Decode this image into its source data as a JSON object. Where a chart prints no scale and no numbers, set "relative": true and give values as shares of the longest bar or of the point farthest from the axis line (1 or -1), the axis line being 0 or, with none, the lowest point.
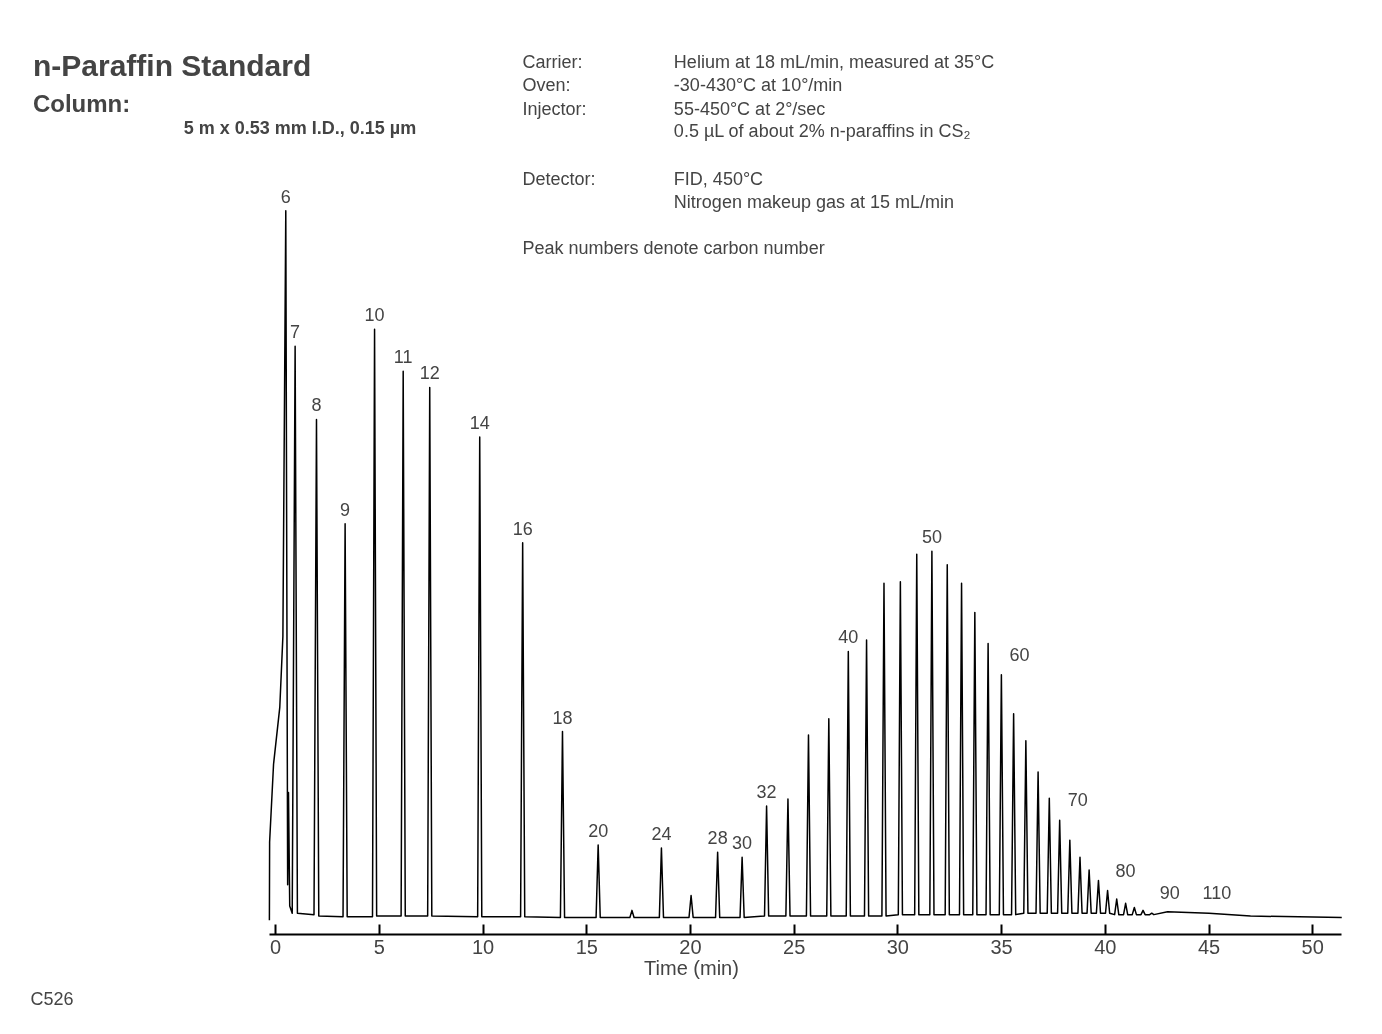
{
  "chart_data": {
    "type": "line",
    "relative": true,
    "title": "n-Paraffin Standard",
    "xlabel": "Time (min)",
    "xlim": [
      -0.3,
      51.4
    ],
    "xticks": [
      0,
      5,
      10,
      15,
      20,
      25,
      30,
      35,
      40,
      45,
      50
    ],
    "grid": false,
    "marker": "none",
    "line_style": "solid",
    "series": [
      {
        "color": "#000000",
        "x": [
          -0.3,
          -0.29,
          -0.1,
          0.2,
          0.35,
          0.49,
          0.58,
          0.62,
          0.68,
          0.8,
          0.94,
          1.05,
          1.85,
          1.97,
          2.08,
          3.25,
          3.35,
          3.45,
          4.67,
          4.77,
          4.87,
          6.05,
          6.15,
          6.25,
          7.33,
          7.43,
          7.53,
          9.74,
          9.84,
          9.94,
          11.81,
          11.91,
          12.01,
          13.73,
          13.83,
          13.93,
          15.45,
          15.55,
          15.65,
          17.08,
          17.18,
          17.28,
          18.5,
          18.6,
          18.7,
          19.93,
          20.03,
          20.13,
          21.21,
          21.31,
          21.41,
          22.39,
          22.49,
          22.59,
          23.57,
          23.67,
          23.77,
          24.6,
          24.7,
          24.8,
          25.59,
          25.69,
          25.79,
          26.57,
          26.67,
          26.77,
          27.51,
          27.61,
          27.71,
          28.39,
          28.49,
          28.59,
          29.23,
          29.33,
          29.43,
          30.02,
          30.12,
          30.22,
          30.81,
          30.91,
          31.01,
          31.54,
          31.64,
          31.74,
          32.28,
          32.38,
          32.48,
          32.97,
          33.07,
          33.17,
          33.61,
          33.71,
          33.81,
          34.25,
          34.35,
          34.45,
          34.89,
          34.99,
          35.09,
          35.48,
          35.58,
          35.68,
          36.07,
          36.17,
          36.27,
          36.66,
          36.76,
          36.86,
          37.2,
          37.3,
          37.4,
          37.7,
          37.8,
          37.9,
          38.19,
          38.29,
          38.39,
          38.68,
          38.78,
          38.88,
          39.12,
          39.22,
          39.32,
          39.57,
          39.67,
          39.77,
          40.01,
          40.11,
          40.21,
          40.45,
          40.55,
          40.65,
          40.88,
          40.98,
          41.08,
          41.3,
          41.4,
          41.5,
          41.72,
          41.82,
          41.92,
          42.14,
          42.24,
          42.34,
          43.0,
          45.0,
          47.0,
          51.4
        ],
        "values": [
          0,
          0.11,
          0.22,
          0.3,
          0.4,
          1.0,
          0.05,
          0.18,
          0.02,
          0.01,
          0.809,
          0.01,
          0.008,
          0.706,
          0.006,
          0.005,
          0.559,
          0.005,
          0.005,
          0.833,
          0.006,
          0.006,
          0.774,
          0.006,
          0.006,
          0.751,
          0.006,
          0.005,
          0.681,
          0.005,
          0.005,
          0.532,
          0.005,
          0.004,
          0.266,
          0.004,
          0.004,
          0.106,
          0.004,
          0.004,
          0.014,
          0.004,
          0.004,
          0.102,
          0.004,
          0.004,
          0.035,
          0.004,
          0.004,
          0.096,
          0.004,
          0.004,
          0.089,
          0.004,
          0.006,
          0.161,
          0.006,
          0.006,
          0.171,
          0.006,
          0.006,
          0.261,
          0.006,
          0.006,
          0.284,
          0.006,
          0.006,
          0.379,
          0.006,
          0.006,
          0.395,
          0.006,
          0.006,
          0.475,
          0.006,
          0.008,
          0.477,
          0.008,
          0.008,
          0.516,
          0.008,
          0.008,
          0.52,
          0.008,
          0.008,
          0.501,
          0.008,
          0.008,
          0.475,
          0.008,
          0.008,
          0.434,
          0.008,
          0.008,
          0.39,
          0.008,
          0.008,
          0.346,
          0.008,
          0.008,
          0.291,
          0.008,
          0.01,
          0.253,
          0.01,
          0.01,
          0.209,
          0.01,
          0.01,
          0.172,
          0.01,
          0.01,
          0.141,
          0.01,
          0.01,
          0.113,
          0.01,
          0.01,
          0.089,
          0.01,
          0.01,
          0.071,
          0.01,
          0.01,
          0.056,
          0.01,
          0.01,
          0.042,
          0.01,
          0.008,
          0.03,
          0.008,
          0.008,
          0.024,
          0.008,
          0.008,
          0.018,
          0.008,
          0.008,
          0.014,
          0.008,
          0.008,
          0.01,
          0.008,
          0.012,
          0.01,
          0.006,
          0.004
        ]
      }
    ],
    "annotations": [
      "Column:",
      "5 m x 0.53 mm I.D., 0.15 µm",
      "Carrier:",
      "Helium at 18 mL/min, measured at 35°C",
      "Oven:",
      "-30-430°C at 10°/min",
      "Injector:",
      "55-450°C at 2°/sec",
      "0.5 µL of about 2% n-paraffins in CS₂",
      "Detector:",
      "FID, 450°C",
      "Nitrogen makeup gas at 15 mL/min",
      "Peak numbers denote carbon number",
      "C526",
      {
        "text": "6",
        "x": 0.49,
        "y": 1.0
      },
      {
        "text": "7",
        "x": 0.94,
        "y": 0.809
      },
      {
        "text": "8",
        "x": 1.97,
        "y": 0.706
      },
      {
        "text": "9",
        "x": 3.35,
        "y": 0.559
      },
      {
        "text": "10",
        "x": 4.77,
        "y": 0.833
      },
      {
        "text": "11",
        "x": 6.15,
        "y": 0.774
      },
      {
        "text": "12",
        "x": 7.43,
        "y": 0.751
      },
      {
        "text": "14",
        "x": 9.84,
        "y": 0.681
      },
      {
        "text": "16",
        "x": 11.91,
        "y": 0.532
      },
      {
        "text": "18",
        "x": 13.83,
        "y": 0.266
      },
      {
        "text": "20",
        "x": 15.55,
        "y": 0.106
      },
      {
        "text": "24",
        "x": 18.6,
        "y": 0.102
      },
      {
        "text": "28",
        "x": 21.31,
        "y": 0.096
      },
      {
        "text": "30",
        "x": 22.49,
        "y": 0.089
      },
      {
        "text": "32",
        "x": 23.67,
        "y": 0.161
      },
      {
        "text": "40",
        "x": 27.61,
        "y": 0.379
      },
      {
        "text": "50",
        "x": 31.64,
        "y": 0.52
      },
      {
        "text": "60",
        "x": 34.99,
        "y": 0.346
      },
      {
        "text": "70",
        "x": 37.8,
        "y": 0.141
      },
      {
        "text": "80",
        "x": 40.11,
        "y": 0.042
      },
      {
        "text": "90",
        "x": 42.24,
        "y": 0.01
      },
      {
        "text": "110",
        "x": 44.3,
        "y": 0.01
      }
    ]
  }
}
